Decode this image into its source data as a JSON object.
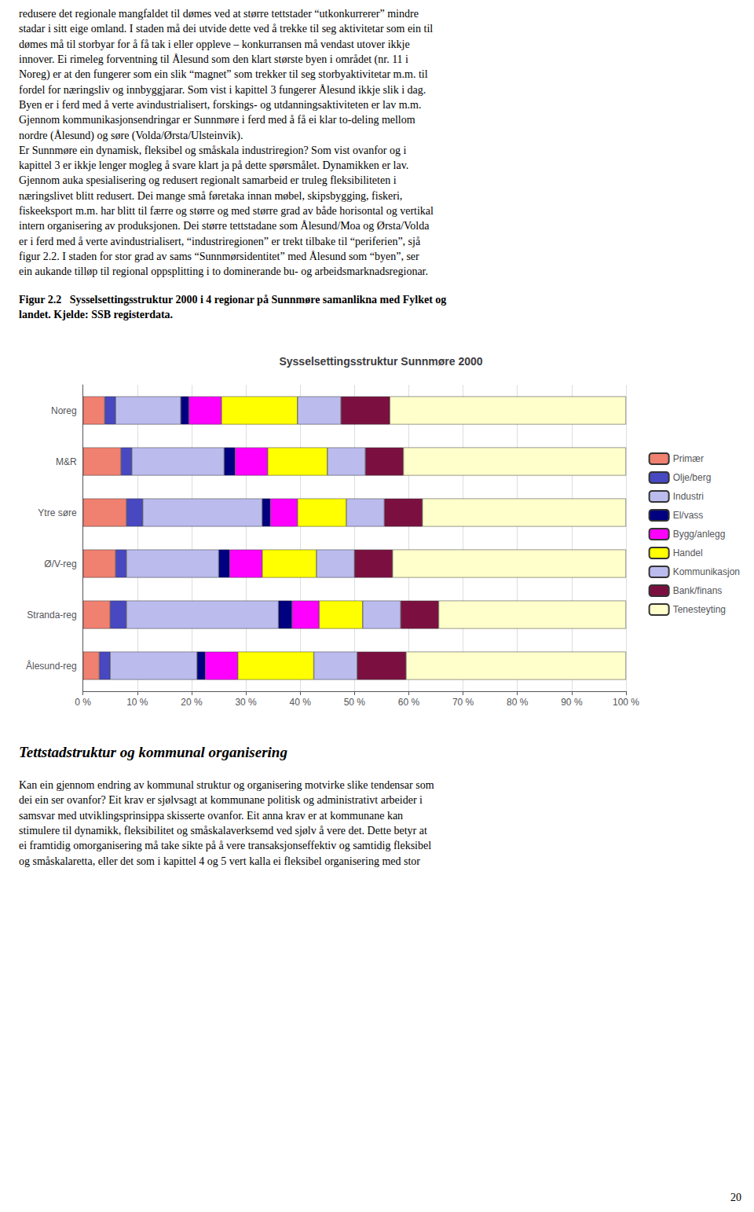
{
  "top_text": "redusere det regionale mangfaldet til dømes ved at større tettstader “utkonkurrerer” mindre\nstadar i sitt eige omland. I staden må dei utvide dette ved å trekke til seg aktivitetar som ein til\ndømes må til storbyar for å få tak i eller oppleve – konkurransen må vendast utover ikkje\ninnover. Ei rimeleg forventning til Ålesund som den klart største byen i området (nr. 11 i\nNoreg) er at den fungerer som ein slik “magnet” som trekker til seg storbyaktivitetar m.m. til\nfordel for næringsliv og innbyggjarar. Som vist i kapittel 3 fungerer Ålesund ikkje slik i dag.\nByen er i ferd med å verte avindustrialisert, forskings- og utdanningsaktiviteten er lav m.m.\nGjennom kommunikasjonsendringar er Sunnmøre i ferd med å få ei klar to-deling mellom\nnordre (Ålesund) og søre (Volda/Ørsta/Ulsteinvik).\nEr Sunnmøre ein dynamisk, fleksibel og småskala industriregion? Som vist ovanfor og i\nkapittel 3 er ikkje lenger mogleg å svare klart ja på dette spørsmålet. Dynamikken er lav.\nGjennom auka spesialisering og redusert regionalt samarbeid er truleg fleksibiliteten i\nnæringslivet blitt redusert. Dei mange små føretaka innan møbel, skipsbygging, fiskeri,\nfiskeeksport m.m. har blitt til færre og større og med større grad av både horisontal og vertikal\nintern organisering av produksjonen. Dei større tettstadane som Ålesund/Moa og Ørsta/Volda\ner i ferd med å verte avindustrialisert, “industriregionen” er trekt tilbake til “periferien”, sjå\nfigur 2.2. I staden for stor grad av sams “Sunnmørsidentitet” med Ålesund som “byen”, ser\nein aukande tilløp til regional oppsplitting i to dominerande bu- og arbeidsmarknadsregionar.",
  "caption": "Figur 2.2   Sysselsettingsstruktur 2000 i 4 regionar på Sunnmøre samanlikna med Fylket og\nlandet. Kjelde: SSB registerdata.",
  "bottom_heading": "Tettstadstruktur og kommunal organisering",
  "bottom_text": "Kan ein gjennom endring av kommunal struktur og organisering motvirke slike tendensar som\ndei ein ser ovanfor? Eit krav er sjølvsagt at kommunane politisk og administrativt arbeider i\nsamsvar med utviklingsprinsippa skisserte ovanfor. Eit anna krav er at kommunane kan\nstimulere til dynamikk, fleksibilitet og småskalaverksemd ved sjølv å vere det. Dette betyr at\nei framtidig omorganisering må take sikte på å vere transaksjonseffektiv og samtidig fleksibel\nog småskalaretta, eller det som i kapittel 4 og 5 vert kalla ei fleksibel organisering med stor",
  "page_number": "20",
  "chart_data": {
    "type": "bar",
    "title": "Sysselsettingsstruktur Sunnmøre 2000",
    "orientation": "horizontal",
    "stacked": true,
    "categories": [
      "Noreg",
      "M&R",
      "Ytre søre",
      "Ø/V-reg",
      "Stranda-reg",
      "Ålesund-reg"
    ],
    "series": [
      {
        "name": "Primær",
        "color": "#F08070",
        "values": [
          4.0,
          7.0,
          8.0,
          6.0,
          5.0,
          3.0
        ]
      },
      {
        "name": "Olje/berg",
        "color": "#4848C0",
        "values": [
          2.0,
          2.0,
          3.0,
          2.0,
          3.0,
          2.0
        ]
      },
      {
        "name": "Industri",
        "color": "#BBBBEE",
        "values": [
          12.0,
          17.0,
          22.0,
          17.0,
          28.0,
          16.0
        ]
      },
      {
        "name": "El/vass",
        "color": "#000080",
        "values": [
          1.5,
          2.0,
          1.5,
          2.0,
          2.5,
          1.5
        ]
      },
      {
        "name": "Bygg/anlegg",
        "color": "#FF00FF",
        "values": [
          6.0,
          6.0,
          5.0,
          6.0,
          5.0,
          6.0
        ]
      },
      {
        "name": "Handel",
        "color": "#FFFF00",
        "values": [
          14.0,
          11.0,
          9.0,
          10.0,
          8.0,
          14.0
        ]
      },
      {
        "name": "Kommunikasjon",
        "color": "#BBBBEE",
        "values": [
          8.0,
          7.0,
          7.0,
          7.0,
          7.0,
          8.0
        ]
      },
      {
        "name": "Bank/finans",
        "color": "#7B1040",
        "values": [
          9.0,
          7.0,
          7.0,
          7.0,
          7.0,
          9.0
        ]
      },
      {
        "name": "Tenesteyting",
        "color": "#FFFFCC",
        "values": [
          43.5,
          41.0,
          37.5,
          43.0,
          34.5,
          40.5
        ]
      }
    ],
    "xlim": [
      0,
      100
    ],
    "xticks": [
      {
        "value": 0,
        "label": "0 %"
      },
      {
        "value": 10,
        "label": "10 %"
      },
      {
        "value": 20,
        "label": "20 %"
      },
      {
        "value": 30,
        "label": "30 %"
      },
      {
        "value": 40,
        "label": "40 %"
      },
      {
        "value": 50,
        "label": "50 %"
      },
      {
        "value": 60,
        "label": "60 %"
      },
      {
        "value": 70,
        "label": "70 %"
      },
      {
        "value": 80,
        "label": "80 %"
      },
      {
        "value": 90,
        "label": "90 %"
      },
      {
        "value": 100,
        "label": "100 %"
      }
    ],
    "grid": true,
    "legend": "right"
  }
}
